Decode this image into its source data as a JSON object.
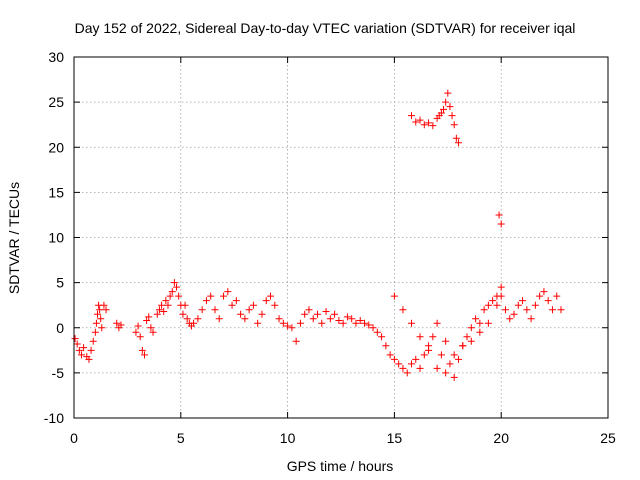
{
  "chart_data": {
    "type": "scatter",
    "title": "Day 152 of 2022, Sidereal Day-to-day VTEC variation (SDTVAR) for receiver iqal",
    "xlabel": "GPS time / hours",
    "ylabel": "SDTVAR / TECUs",
    "xlim": [
      0,
      25
    ],
    "ylim": [
      -10,
      30
    ],
    "xticks": [
      0,
      5,
      10,
      15,
      20,
      25
    ],
    "yticks": [
      -10,
      -5,
      0,
      5,
      10,
      15,
      20,
      25,
      30
    ],
    "grid": true,
    "marker": "+",
    "marker_color": "#ff0000",
    "series": [
      {
        "name": "SDTVAR",
        "x": [
          0.05,
          0.15,
          0.25,
          0.35,
          0.45,
          0.6,
          0.7,
          0.8,
          0.9,
          1.0,
          1.05,
          1.1,
          1.15,
          1.2,
          1.25,
          1.3,
          1.4,
          1.5,
          2.0,
          2.1,
          2.2,
          2.9,
          3.0,
          3.1,
          3.2,
          3.3,
          3.4,
          3.5,
          3.6,
          3.7,
          3.9,
          4.0,
          4.1,
          4.2,
          4.3,
          4.4,
          4.5,
          4.6,
          4.7,
          4.8,
          4.9,
          5.0,
          5.1,
          5.2,
          5.3,
          5.4,
          5.5,
          5.6,
          5.8,
          6.0,
          6.2,
          6.4,
          6.6,
          6.8,
          7.0,
          7.2,
          7.4,
          7.6,
          7.8,
          8.0,
          8.2,
          8.4,
          8.6,
          8.8,
          9.0,
          9.2,
          9.4,
          9.6,
          9.8,
          10.0,
          10.2,
          10.4,
          10.6,
          10.8,
          11.0,
          11.2,
          11.4,
          11.6,
          11.8,
          12.0,
          12.2,
          12.4,
          12.6,
          12.8,
          13.0,
          13.2,
          13.4,
          13.6,
          13.8,
          14.0,
          14.2,
          14.4,
          14.6,
          14.8,
          15.0,
          15.2,
          15.4,
          15.6,
          15.8,
          16.0,
          16.2,
          16.4,
          16.6,
          16.8,
          17.0,
          17.2,
          17.4,
          17.6,
          17.8,
          18.0,
          18.2,
          18.4,
          18.6,
          18.8,
          19.0,
          19.2,
          19.4,
          19.6,
          19.8,
          20.0,
          20.2,
          20.4,
          20.6,
          20.8,
          21.0,
          21.2,
          21.4,
          21.6,
          21.8,
          22.0,
          22.2,
          22.4,
          22.6,
          22.8,
          15.8,
          16.0,
          16.2,
          16.4,
          16.6,
          16.8,
          17.0,
          17.1,
          17.2,
          17.3,
          17.4,
          17.5,
          17.6,
          17.7,
          17.8,
          17.9,
          18.0,
          19.9,
          20.0,
          15.0,
          15.4,
          15.8,
          16.2,
          16.6,
          17.0,
          17.4,
          17.8,
          18.2,
          18.6,
          19.0,
          19.4,
          19.8,
          20.0
        ],
        "y": [
          -1.2,
          -1.8,
          -2.5,
          -3.0,
          -2.2,
          -3.2,
          -3.5,
          -2.5,
          -1.5,
          -0.5,
          0.5,
          1.5,
          2.5,
          2.0,
          1.0,
          0.0,
          2.5,
          2.0,
          0.5,
          0.0,
          0.3,
          -0.5,
          0.2,
          -1.0,
          -2.5,
          -3.0,
          0.8,
          1.2,
          0.0,
          -0.5,
          1.5,
          2.0,
          2.5,
          1.8,
          3.0,
          2.5,
          3.5,
          4.0,
          5.0,
          4.5,
          3.5,
          2.5,
          1.5,
          2.5,
          1.0,
          0.5,
          0.2,
          0.5,
          1.0,
          2.0,
          3.0,
          3.5,
          2.0,
          1.0,
          3.5,
          4.0,
          2.5,
          3.0,
          1.5,
          1.0,
          2.0,
          2.5,
          0.5,
          1.5,
          3.0,
          3.5,
          2.5,
          1.0,
          0.5,
          0.2,
          0.0,
          -1.5,
          0.5,
          1.5,
          2.0,
          1.0,
          1.5,
          0.5,
          1.8,
          1.0,
          1.5,
          0.8,
          0.5,
          1.2,
          1.0,
          0.5,
          0.8,
          0.5,
          0.3,
          0.0,
          -0.5,
          -1.0,
          -2.0,
          -3.0,
          -3.5,
          -4.0,
          -4.5,
          -5.0,
          -4.0,
          -3.5,
          -4.5,
          -3.0,
          -2.0,
          -1.0,
          -4.5,
          -3.0,
          -5.0,
          -4.0,
          -5.5,
          -3.5,
          -2.0,
          -1.0,
          0.0,
          1.0,
          0.5,
          2.0,
          2.5,
          3.0,
          3.5,
          4.5,
          2.0,
          1.0,
          1.5,
          2.5,
          3.0,
          2.0,
          1.0,
          2.5,
          3.5,
          4.0,
          3.0,
          2.0,
          3.5,
          2.0,
          23.5,
          22.8,
          23.0,
          22.5,
          22.7,
          22.4,
          23.2,
          23.5,
          23.8,
          24.2,
          25.0,
          26.0,
          24.5,
          23.5,
          22.5,
          21.0,
          20.5,
          12.5,
          11.5,
          3.5,
          2.0,
          0.5,
          -1.0,
          -2.5,
          0.5,
          -1.5,
          -3.0,
          -2.0,
          -1.5,
          -0.5,
          0.5,
          2.5,
          3.5
        ]
      }
    ]
  }
}
